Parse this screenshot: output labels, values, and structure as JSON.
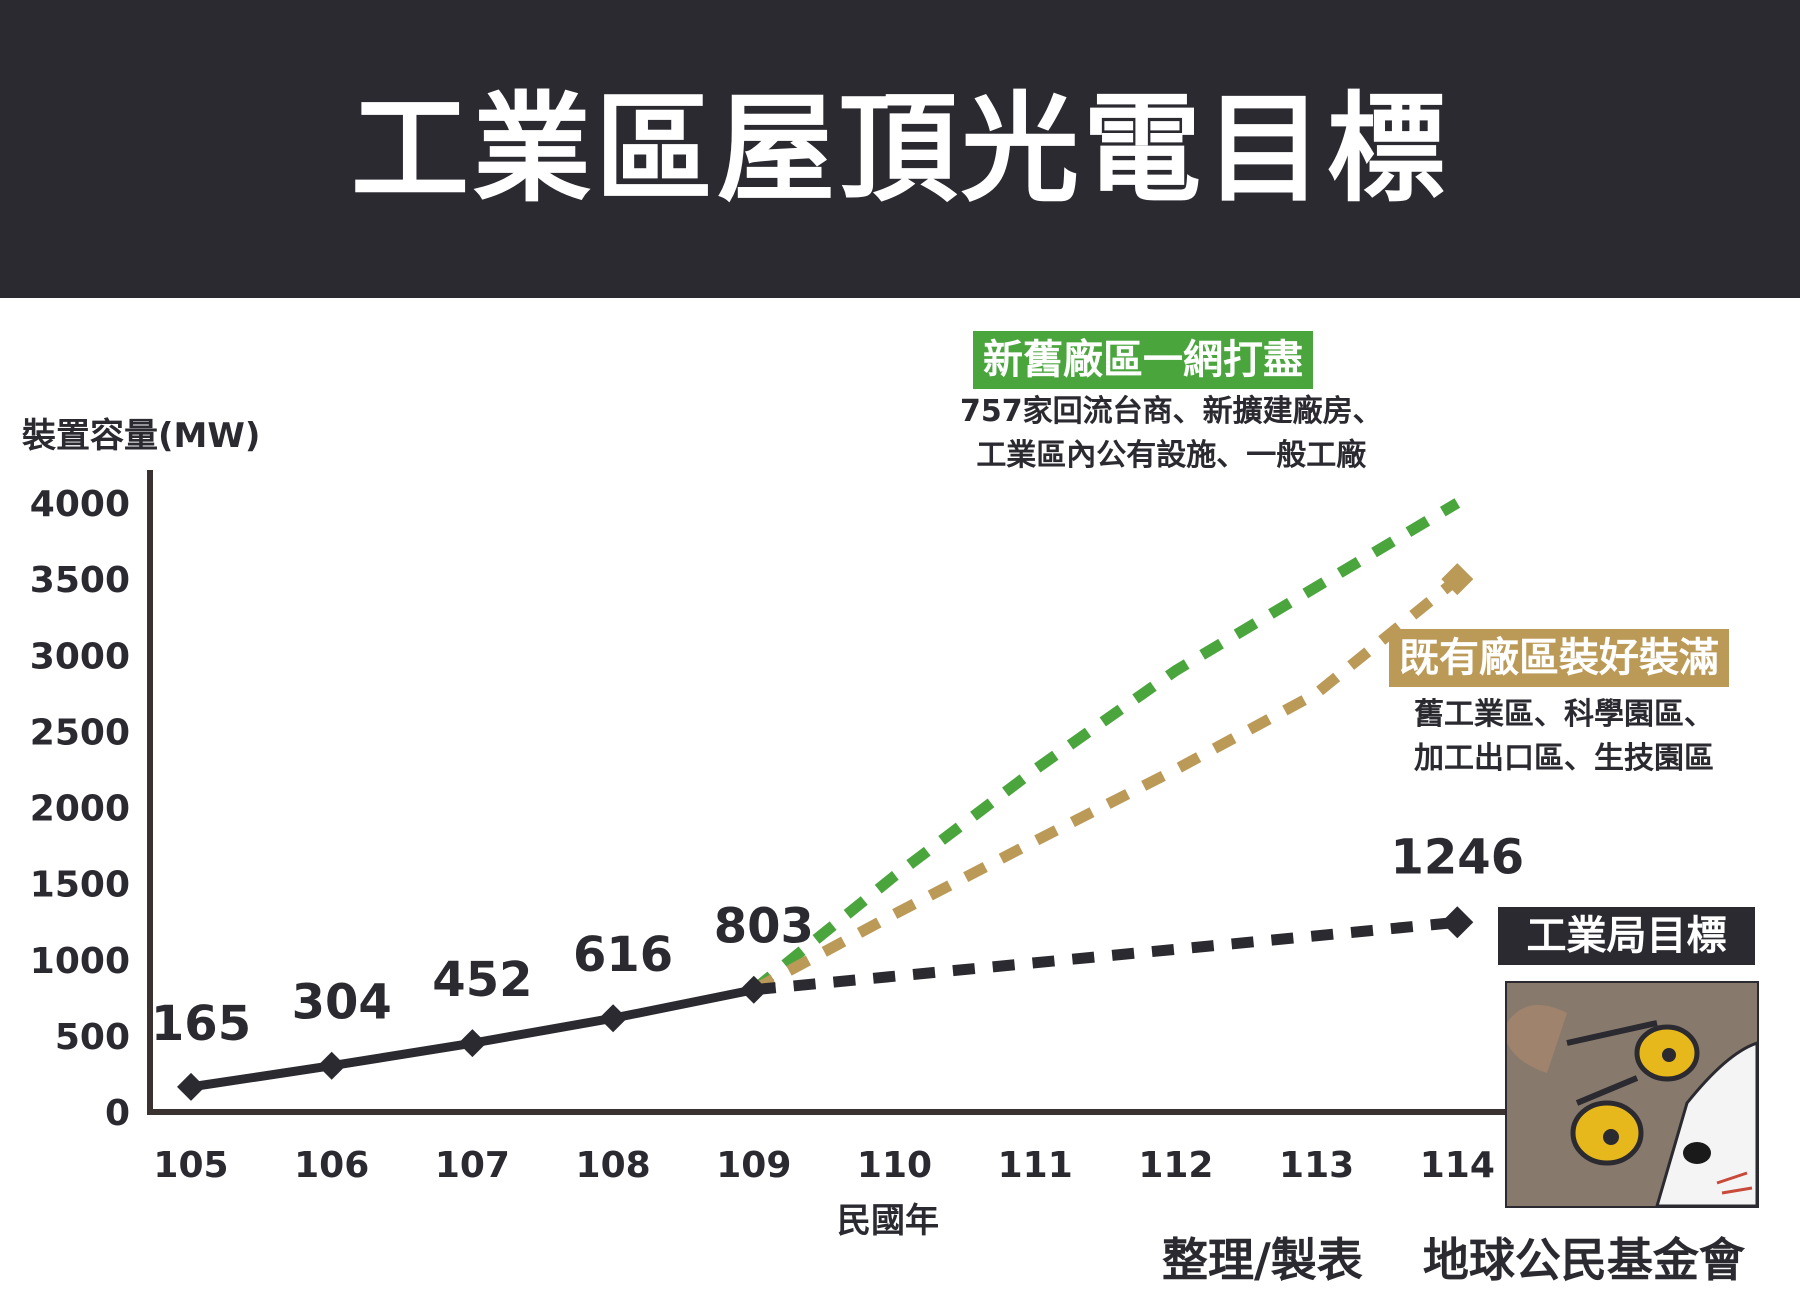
{
  "header": {
    "title": "工業區屋頂光電目標"
  },
  "scenarios": {
    "green": {
      "label": "新舊廠區一網打盡",
      "desc": [
        "757家回流台商、新擴建廠房、",
        "工業區內公有設施、一般工廠"
      ]
    },
    "gold": {
      "label": "既有廠區裝好裝滿",
      "desc": [
        "舊工業區、科學園區、",
        "加工出口區、生技園區"
      ]
    },
    "dark": {
      "label": "工業局目標"
    }
  },
  "credit": {
    "role": "整理/製表",
    "org": "地球公民基金會"
  },
  "colors": {
    "actual": "#2b2a30",
    "green": "#4aa53d",
    "gold": "#bb9a58",
    "header_bg": "#2b2a30"
  },
  "chart_data": {
    "type": "line",
    "ylabel": "裝置容量(MW)",
    "xlabel": "民國年",
    "x": [
      105,
      106,
      107,
      108,
      109,
      110,
      111,
      112,
      113,
      114
    ],
    "ylim": [
      0,
      4000
    ],
    "yticks": [
      0,
      500,
      1000,
      1500,
      2000,
      2500,
      3000,
      3500,
      4000
    ],
    "grid": false,
    "series": [
      {
        "key": "actual",
        "style": "solid",
        "marker": "diamond",
        "points": [
          [
            105,
            165
          ],
          [
            106,
            304
          ],
          [
            107,
            452
          ],
          [
            108,
            616
          ],
          [
            109,
            803
          ]
        ],
        "labels": [
          "165",
          "304",
          "452",
          "616",
          "803"
        ]
      },
      {
        "key": "dark",
        "name": "工業局目標",
        "style": "dashed",
        "marker": "diamond",
        "points": [
          [
            109,
            803
          ],
          [
            114,
            1246
          ]
        ],
        "end_label": "1246"
      },
      {
        "key": "gold",
        "name": "既有廠區裝好裝滿",
        "style": "dashed",
        "marker": "diamond",
        "points": [
          [
            109,
            803
          ],
          [
            110,
            1300
          ],
          [
            111,
            1780
          ],
          [
            112,
            2250
          ],
          [
            113,
            2750
          ],
          [
            114,
            3500
          ]
        ]
      },
      {
        "key": "green",
        "name": "新舊廠區一網打盡",
        "style": "dashed",
        "marker": "none",
        "points": [
          [
            109,
            803
          ],
          [
            110,
            1550
          ],
          [
            111,
            2250
          ],
          [
            112,
            2900
          ],
          [
            113,
            3450
          ],
          [
            114,
            4000
          ]
        ]
      }
    ]
  }
}
